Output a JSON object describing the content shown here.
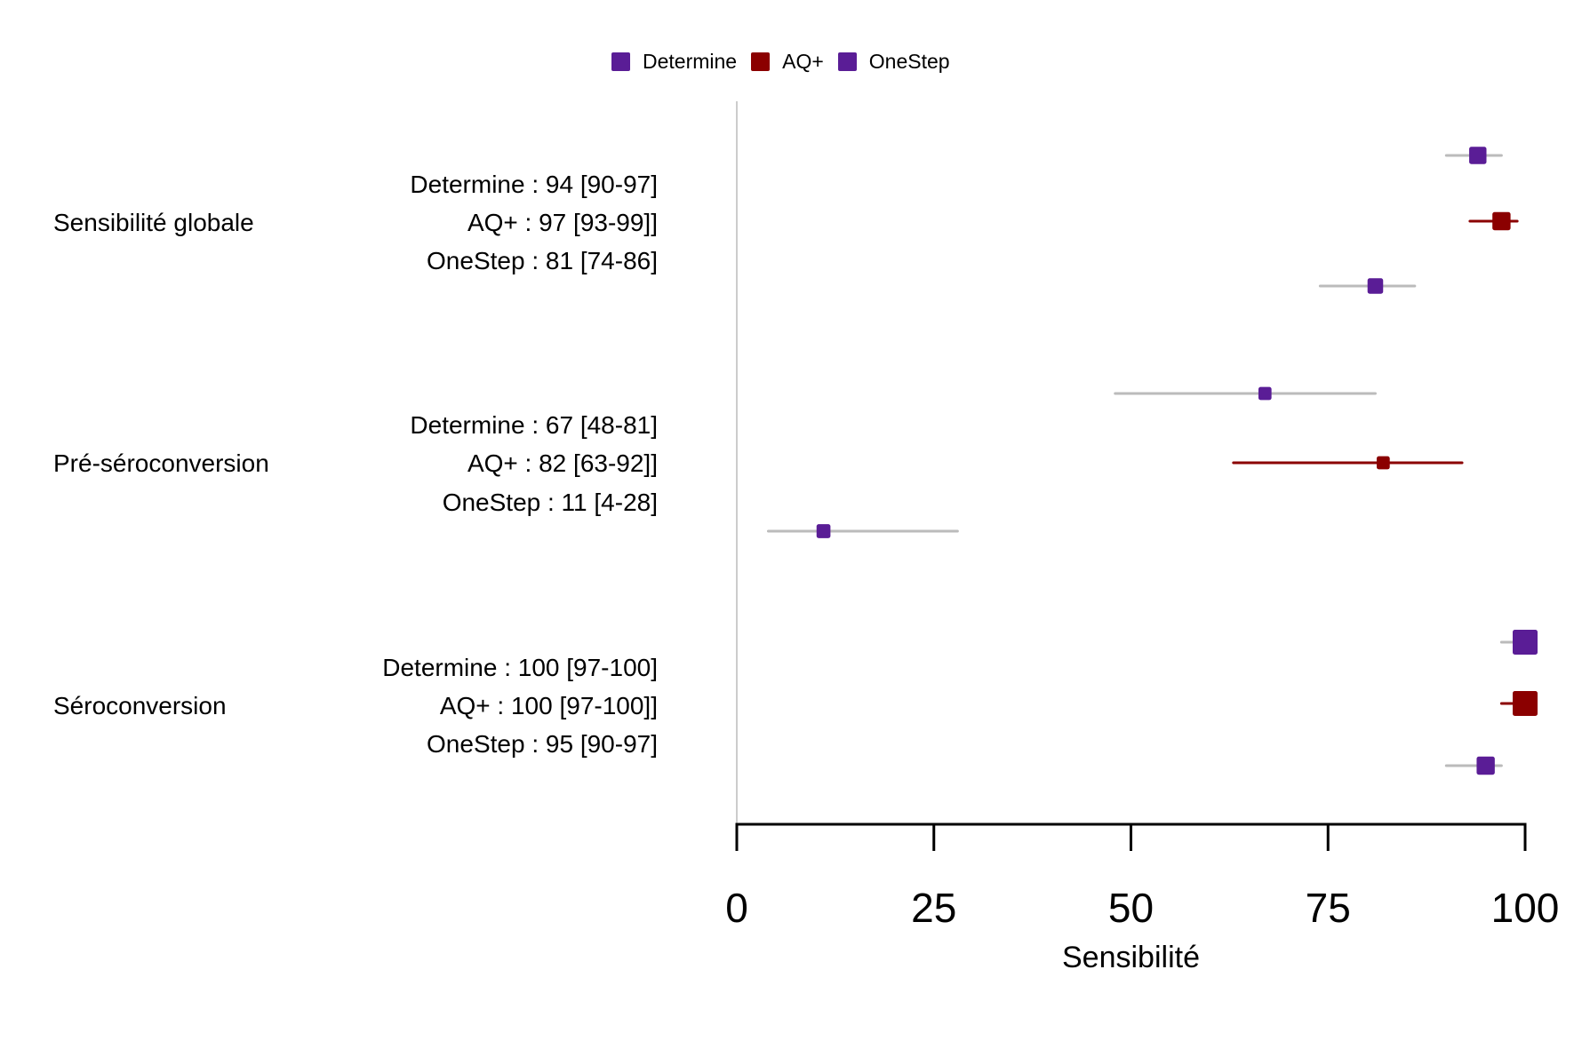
{
  "chart_data": {
    "type": "forest",
    "title": "",
    "xlabel": "Sensibilité",
    "ylabel": "",
    "xlim": [
      0,
      100
    ],
    "xticks": [
      0,
      25,
      50,
      75,
      100
    ],
    "grid": false,
    "legend_position": "top-center",
    "legend": [
      {
        "name": "Determine",
        "color": "#5a1d96"
      },
      {
        "name": "AQ+",
        "color": "#8b0000"
      },
      {
        "name": "OneStep",
        "color": "#5a1d96"
      }
    ],
    "groups": [
      {
        "label": "Sensibilité globale",
        "rows": [
          {
            "test": "Determine",
            "text": "Determine : 94 [90-97]",
            "value": 94,
            "lo": 90,
            "hi": 97,
            "color": "#5a1d96",
            "ci_color": "#bbbbbb",
            "weight": 0.55
          },
          {
            "test": "AQ+",
            "text": "AQ+ : 97 [93-99]]",
            "value": 97,
            "lo": 93,
            "hi": 99,
            "color": "#8b0000",
            "ci_color": "#8b0000",
            "weight": 0.6
          },
          {
            "test": "OneStep",
            "text": "OneStep : 81 [74-86]",
            "value": 81,
            "lo": 74,
            "hi": 86,
            "color": "#5a1d96",
            "ci_color": "#bbbbbb",
            "weight": 0.45
          }
        ]
      },
      {
        "label": "Pré-séroconversion",
        "rows": [
          {
            "test": "Determine",
            "text": "Determine : 67 [48-81]",
            "value": 67,
            "lo": 48,
            "hi": 81,
            "color": "#5a1d96",
            "ci_color": "#bbbbbb",
            "weight": 0.3
          },
          {
            "test": "AQ+",
            "text": "AQ+ : 82 [63-92]]",
            "value": 82,
            "lo": 63,
            "hi": 92,
            "color": "#8b0000",
            "ci_color": "#8b0000",
            "weight": 0.3
          },
          {
            "test": "OneStep",
            "text": "OneStep : 11 [4-28]",
            "value": 11,
            "lo": 4,
            "hi": 28,
            "color": "#5a1d96",
            "ci_color": "#bbbbbb",
            "weight": 0.35
          }
        ]
      },
      {
        "label": "Séroconversion",
        "rows": [
          {
            "test": "Determine",
            "text": "Determine : 100 [97-100]",
            "value": 100,
            "lo": 97,
            "hi": 100,
            "color": "#5a1d96",
            "ci_color": "#bbbbbb",
            "weight": 1.0
          },
          {
            "test": "AQ+",
            "text": "AQ+ : 100 [97-100]]",
            "value": 100,
            "lo": 97,
            "hi": 100,
            "color": "#8b0000",
            "ci_color": "#8b0000",
            "weight": 1.0
          },
          {
            "test": "OneStep",
            "text": "OneStep : 95 [90-97]",
            "value": 95,
            "lo": 90,
            "hi": 97,
            "color": "#5a1d96",
            "ci_color": "#bbbbbb",
            "weight": 0.6
          }
        ]
      }
    ]
  }
}
